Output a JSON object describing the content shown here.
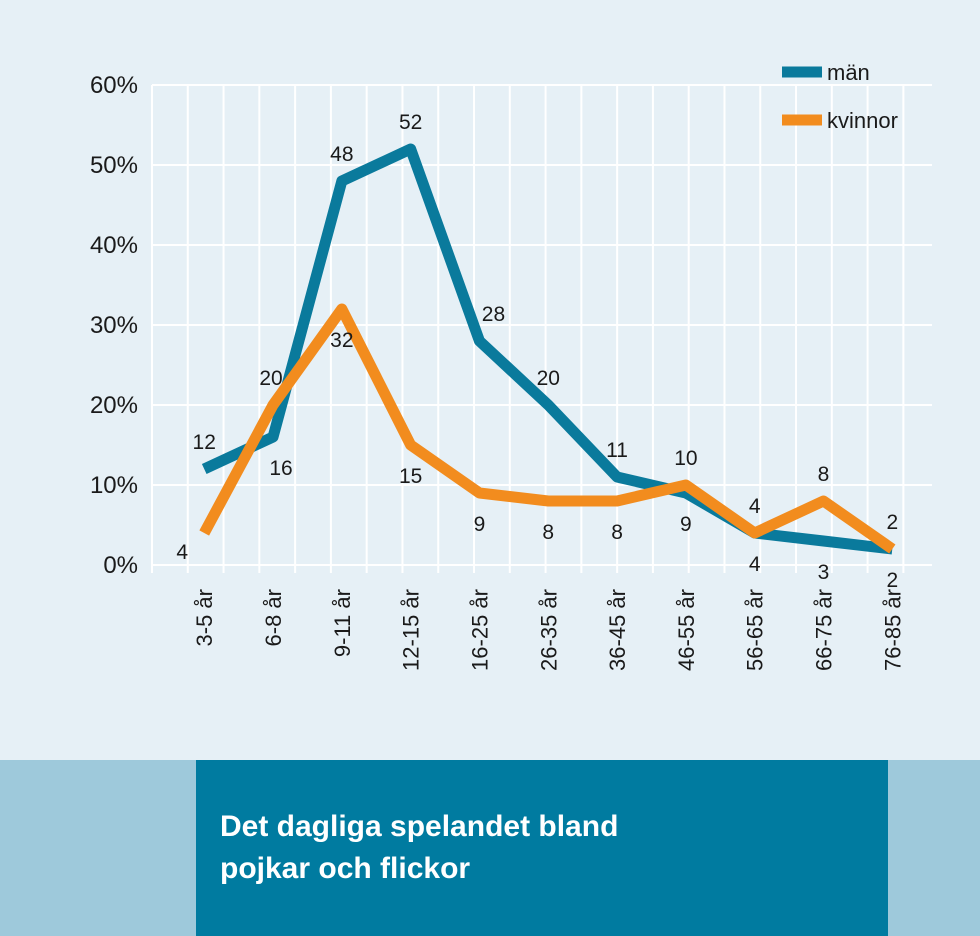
{
  "chart_data": {
    "type": "line",
    "title": "",
    "xlabel": "",
    "ylabel": "",
    "categories": [
      "3-5 år",
      "6-8 år",
      "9-11 år",
      "12-15 år",
      "16-25 år",
      "26-35 år",
      "36-45 år",
      "46-55 år",
      "56-65 år",
      "66-75 år",
      "76-85 år"
    ],
    "series": [
      {
        "name": "män",
        "color": "#0a7a9c",
        "values": [
          12,
          16,
          48,
          52,
          28,
          20,
          11,
          9,
          4,
          3,
          2
        ]
      },
      {
        "name": "kvinnor",
        "color": "#f28c1e",
        "values": [
          4,
          20,
          32,
          15,
          9,
          8,
          8,
          10,
          4,
          8,
          2
        ]
      }
    ],
    "ylim": [
      0,
      60
    ],
    "yticks": [
      "0%",
      "10%",
      "20%",
      "30%",
      "40%",
      "50%",
      "60%"
    ],
    "grid": true,
    "legend_position": "top-right",
    "data_labels": true
  },
  "banner": {
    "title": "Det dagliga spelandet bland pojkar och flickor",
    "background_color": "#9ec9db",
    "box_color": "#007ba0"
  }
}
